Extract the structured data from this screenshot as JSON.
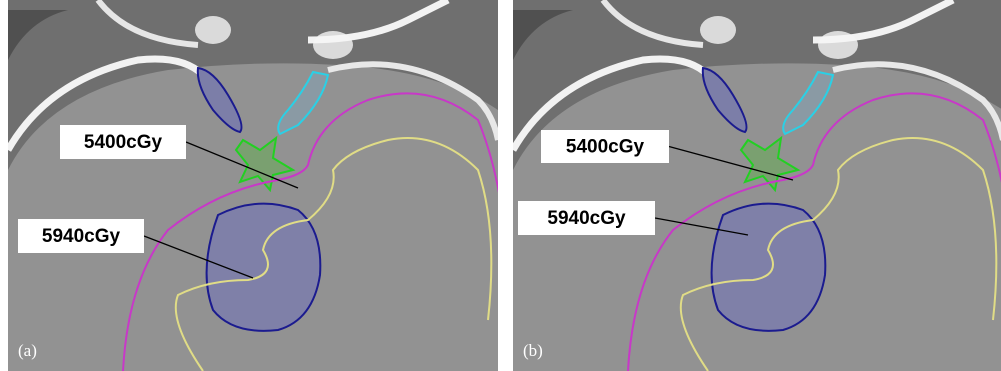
{
  "panels": [
    {
      "caption": "(a)",
      "labels": [
        "5400cGy",
        "5940cGy"
      ]
    },
    {
      "caption": "(b)",
      "labels": [
        "5400cGy",
        "5940cGy"
      ]
    }
  ]
}
